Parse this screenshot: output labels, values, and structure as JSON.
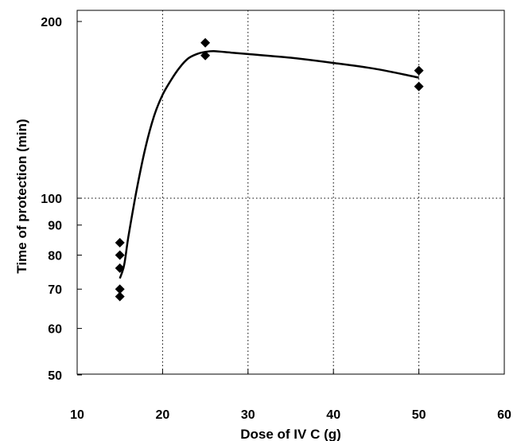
{
  "chart_data": {
    "type": "scatter",
    "title": "",
    "xlabel": "Dose of IV C (g)",
    "ylabel": "Time of protection (min)",
    "xlim": [
      10,
      60
    ],
    "ylim": [
      50,
      200
    ],
    "y_scale": "log",
    "x_ticks": [
      "10",
      "20",
      "30",
      "40",
      "50",
      "60"
    ],
    "x_tick_values": [
      10,
      20,
      30,
      40,
      50,
      60
    ],
    "y_ticks": [
      "50",
      "60",
      "70",
      "80",
      "90",
      "100",
      "200"
    ],
    "y_tick_values": [
      50,
      60,
      70,
      80,
      90,
      100,
      200
    ],
    "grid": "dotted at x=20,30,40,50 and y=100",
    "grid_x": [
      20,
      30,
      40,
      50
    ],
    "grid_y": [
      100
    ],
    "points": [
      {
        "x": 15,
        "y": 84
      },
      {
        "x": 15,
        "y": 80
      },
      {
        "x": 15,
        "y": 76
      },
      {
        "x": 15,
        "y": 70
      },
      {
        "x": 15,
        "y": 68
      },
      {
        "x": 25,
        "y": 184
      },
      {
        "x": 25,
        "y": 175
      },
      {
        "x": 50,
        "y": 165
      },
      {
        "x": 50,
        "y": 155
      }
    ],
    "fit_curve": {
      "x": [
        15,
        15.5,
        16,
        17,
        18,
        19,
        20,
        21,
        22,
        23,
        24,
        25,
        26,
        28,
        30,
        35,
        40,
        45,
        50
      ],
      "y": [
        73,
        77,
        86,
        104,
        122,
        138,
        150,
        159,
        167,
        173,
        176,
        177.5,
        178,
        177,
        176,
        173.5,
        170,
        166,
        160.5
      ]
    },
    "marker_color": "#000000",
    "curve_color": "#000000"
  }
}
